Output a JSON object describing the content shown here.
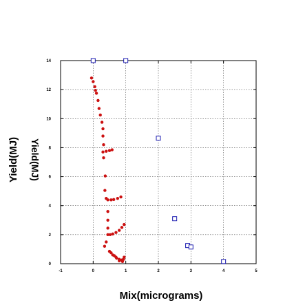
{
  "chart_data": {
    "type": "scatter",
    "title": "",
    "xlabel": "Mix(micrograms)",
    "ylabel": "Yield(MJ)",
    "ylabel_mirrored": "Yield(MJ)",
    "xlim": [
      -1,
      5
    ],
    "ylim": [
      0,
      14
    ],
    "x_ticks": [
      "-1",
      "0",
      "1",
      "2",
      "3",
      "4",
      "5"
    ],
    "y_ticks": [
      "0",
      "2",
      "4",
      "6",
      "8",
      "10",
      "12",
      "14"
    ],
    "grid": true,
    "legend": "none",
    "series": [
      {
        "marker": "dot",
        "color": "#cc1111",
        "points": [
          [
            -0.05,
            12.8
          ],
          [
            0.0,
            12.55
          ],
          [
            0.05,
            12.2
          ],
          [
            0.07,
            11.95
          ],
          [
            0.1,
            11.75
          ],
          [
            0.15,
            11.25
          ],
          [
            0.18,
            10.7
          ],
          [
            0.22,
            10.25
          ],
          [
            0.27,
            9.75
          ],
          [
            0.3,
            9.3
          ],
          [
            0.3,
            8.8
          ],
          [
            0.32,
            8.2
          ],
          [
            0.3,
            7.7
          ],
          [
            0.4,
            7.75
          ],
          [
            0.5,
            7.8
          ],
          [
            0.58,
            7.85
          ],
          [
            0.32,
            7.3
          ],
          [
            0.37,
            6.05
          ],
          [
            0.36,
            5.05
          ],
          [
            0.4,
            4.5
          ],
          [
            0.45,
            4.4
          ],
          [
            0.55,
            4.4
          ],
          [
            0.63,
            4.42
          ],
          [
            0.75,
            4.5
          ],
          [
            0.85,
            4.6
          ],
          [
            0.45,
            3.6
          ],
          [
            0.45,
            3.0
          ],
          [
            0.45,
            2.45
          ],
          [
            0.45,
            2.0
          ],
          [
            0.52,
            2.0
          ],
          [
            0.6,
            2.05
          ],
          [
            0.7,
            2.15
          ],
          [
            0.8,
            2.3
          ],
          [
            0.88,
            2.5
          ],
          [
            0.95,
            2.7
          ],
          [
            0.4,
            1.5
          ],
          [
            0.35,
            1.2
          ],
          [
            0.5,
            0.85
          ],
          [
            0.6,
            0.6
          ],
          [
            0.7,
            0.45
          ],
          [
            0.8,
            0.3
          ],
          [
            0.88,
            0.25
          ],
          [
            0.93,
            0.3
          ],
          [
            0.95,
            0.45
          ],
          [
            0.9,
            0.15
          ],
          [
            0.8,
            0.2
          ],
          [
            0.72,
            0.38
          ],
          [
            0.65,
            0.55
          ],
          [
            0.55,
            0.75
          ]
        ]
      },
      {
        "marker": "open-square",
        "color": "#1a1ab0",
        "points": [
          [
            0.0,
            14.0
          ],
          [
            1.0,
            14.0
          ],
          [
            2.0,
            8.65
          ],
          [
            2.5,
            3.1
          ],
          [
            2.9,
            1.25
          ],
          [
            3.0,
            1.15
          ],
          [
            4.0,
            0.15
          ]
        ]
      }
    ]
  }
}
